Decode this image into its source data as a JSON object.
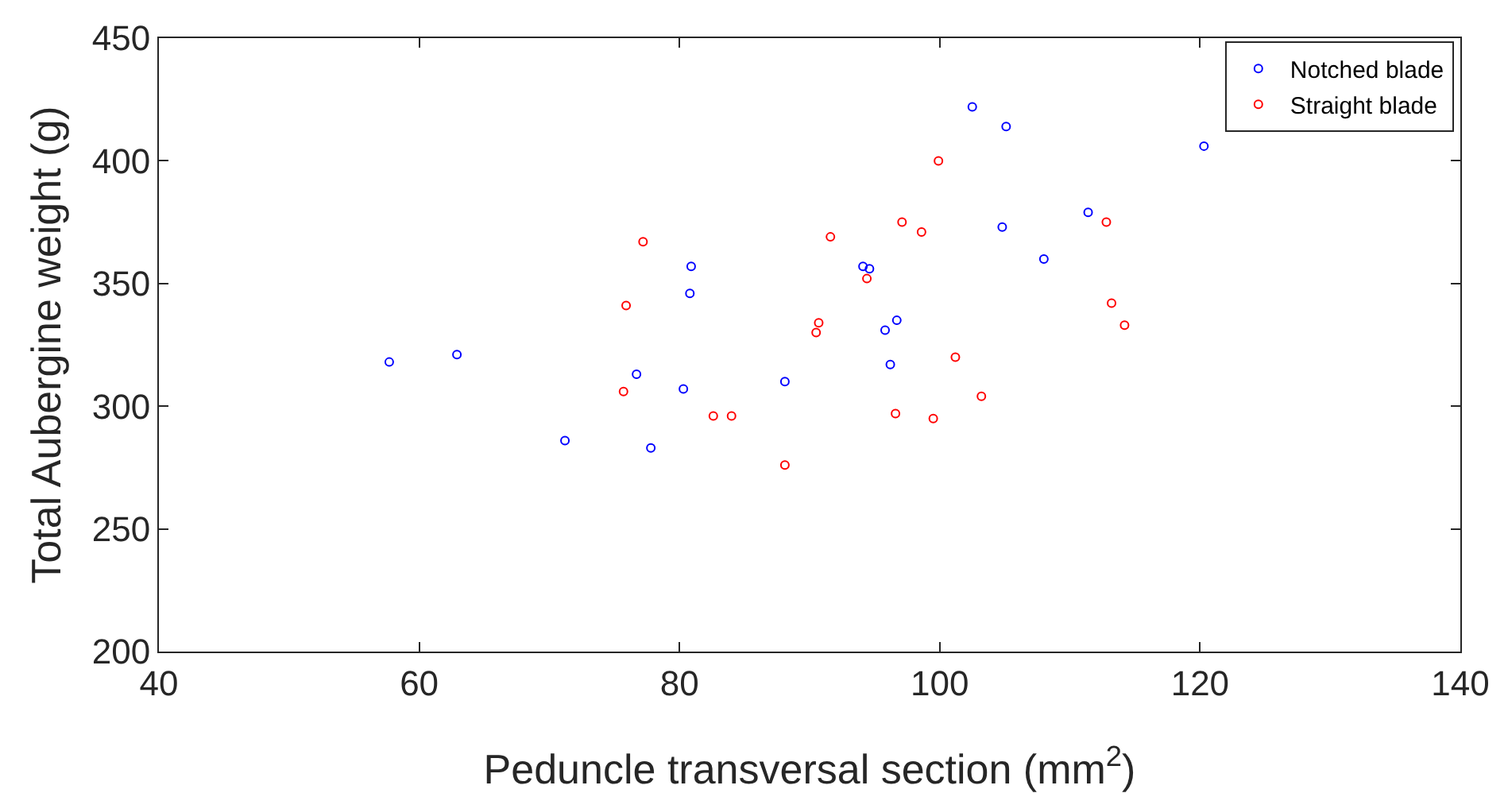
{
  "chart_data": {
    "type": "scatter",
    "xlabel": "Peduncle transversal section (mm$^{2}$)",
    "ylabel": "Total Aubergine weight (g)",
    "xlim": [
      40,
      140
    ],
    "xticks": [
      40,
      60,
      80,
      100,
      120,
      140
    ],
    "ylim": [
      200,
      450
    ],
    "yticks": [
      200,
      250,
      300,
      350,
      400,
      450
    ],
    "grid": false,
    "legend": "top right",
    "marker": "circle",
    "series": [
      {
        "name": "Notched blade",
        "color": "#0000ff",
        "x": [
          57.7,
          62.9,
          71.2,
          76.7,
          77.8,
          80.3,
          80.8,
          80.9,
          88.1,
          94.1,
          94.6,
          95.8,
          96.2,
          96.7,
          102.5,
          105.1,
          104.8,
          108.0,
          111.4,
          120.3
        ],
        "values": [
          318,
          321,
          286,
          313,
          283,
          307,
          346,
          357,
          310,
          357,
          356,
          331,
          317,
          335,
          422,
          414,
          373,
          360,
          379,
          406
        ]
      },
      {
        "name": "Straight blade",
        "color": "#ff0000",
        "x": [
          75.7,
          75.9,
          77.2,
          82.6,
          84.0,
          88.1,
          90.5,
          90.7,
          91.6,
          94.4,
          96.6,
          97.1,
          98.6,
          99.5,
          99.9,
          101.2,
          103.2,
          112.8,
          113.2,
          114.2
        ],
        "values": [
          306,
          341,
          367,
          296,
          296,
          276,
          330,
          334,
          369,
          352,
          297,
          375,
          371,
          295,
          400,
          320,
          304,
          375,
          342,
          333
        ]
      }
    ]
  }
}
